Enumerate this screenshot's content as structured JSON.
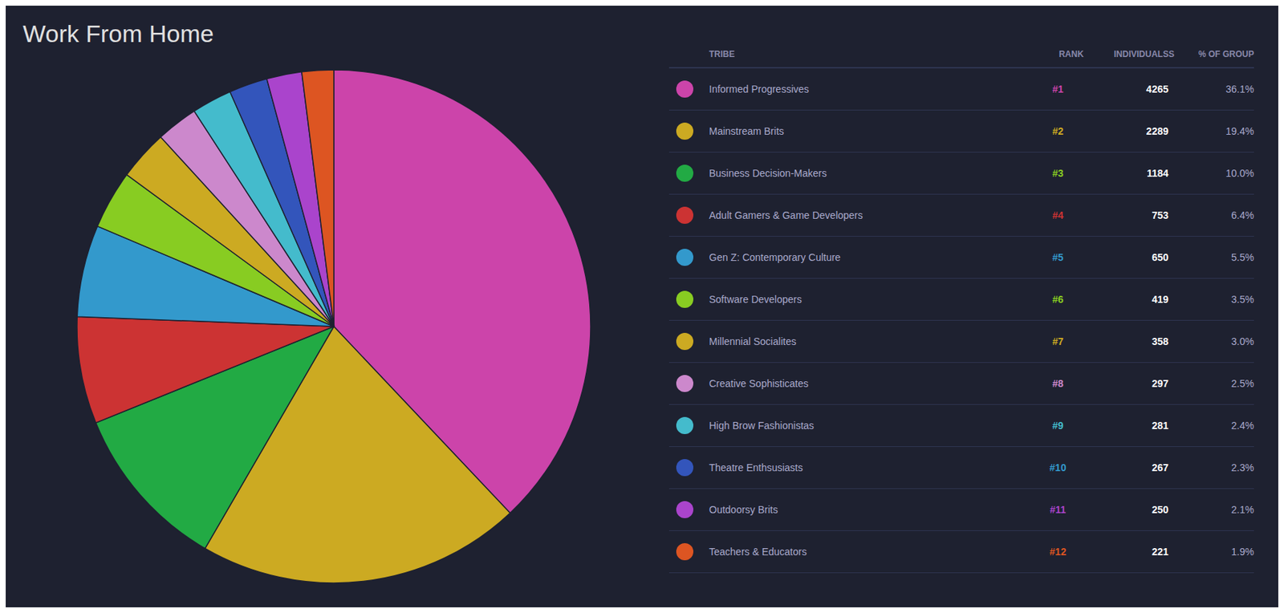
{
  "chart_data": {
    "type": "pie",
    "title": "Work From Home",
    "categories": [
      "Informed Progressives",
      "Mainstream Brits",
      "Business Decision-Makers",
      "Adult Gamers & Game Developers",
      "Gen Z: Contemporary Culture",
      "Software Developers",
      "Millennial Socialites",
      "Creative Sophisticates",
      "High Brow Fashionistas",
      "Theatre Enthsusiasts",
      "Outdoorsy Brits",
      "Teachers & Educators"
    ],
    "values": [
      36.1,
      19.4,
      10.0,
      6.4,
      5.5,
      3.5,
      3.0,
      2.5,
      2.4,
      2.3,
      2.1,
      1.9
    ],
    "value_labels": [
      "36.1%",
      "19.4%",
      "10.0%",
      "6.4%",
      "5.5%",
      "3.5%",
      "3.0%",
      "2.5%",
      "2.4%",
      "2.3%",
      "2.1%",
      "1.9%"
    ],
    "colors": [
      "#cc44aa",
      "#ccaa22",
      "#22aa44",
      "#cc3333",
      "#3399cc",
      "#88cc22",
      "#ccaa22",
      "#cc88cc",
      "#44bbcc",
      "#3355bb",
      "#aa44cc",
      "#dd5522"
    ],
    "columns": [
      "TRIBE",
      "RANK",
      "INDIVIDUALSS",
      "% OF GROUP"
    ],
    "ranks": [
      "#1",
      "#2",
      "#3",
      "#4",
      "#5",
      "#6",
      "#7",
      "#8",
      "#9",
      "#10",
      "#11",
      "#12"
    ],
    "rank_colors": [
      "#cc44aa",
      "#ccaa22",
      "#88cc22",
      "#cc3333",
      "#3399cc",
      "#88cc22",
      "#ccaa22",
      "#cc88cc",
      "#44bbcc",
      "#3399cc",
      "#aa44cc",
      "#dd5522"
    ],
    "individuals": [
      4265,
      2289,
      1184,
      753,
      650,
      419,
      358,
      297,
      281,
      267,
      250,
      221
    ]
  }
}
